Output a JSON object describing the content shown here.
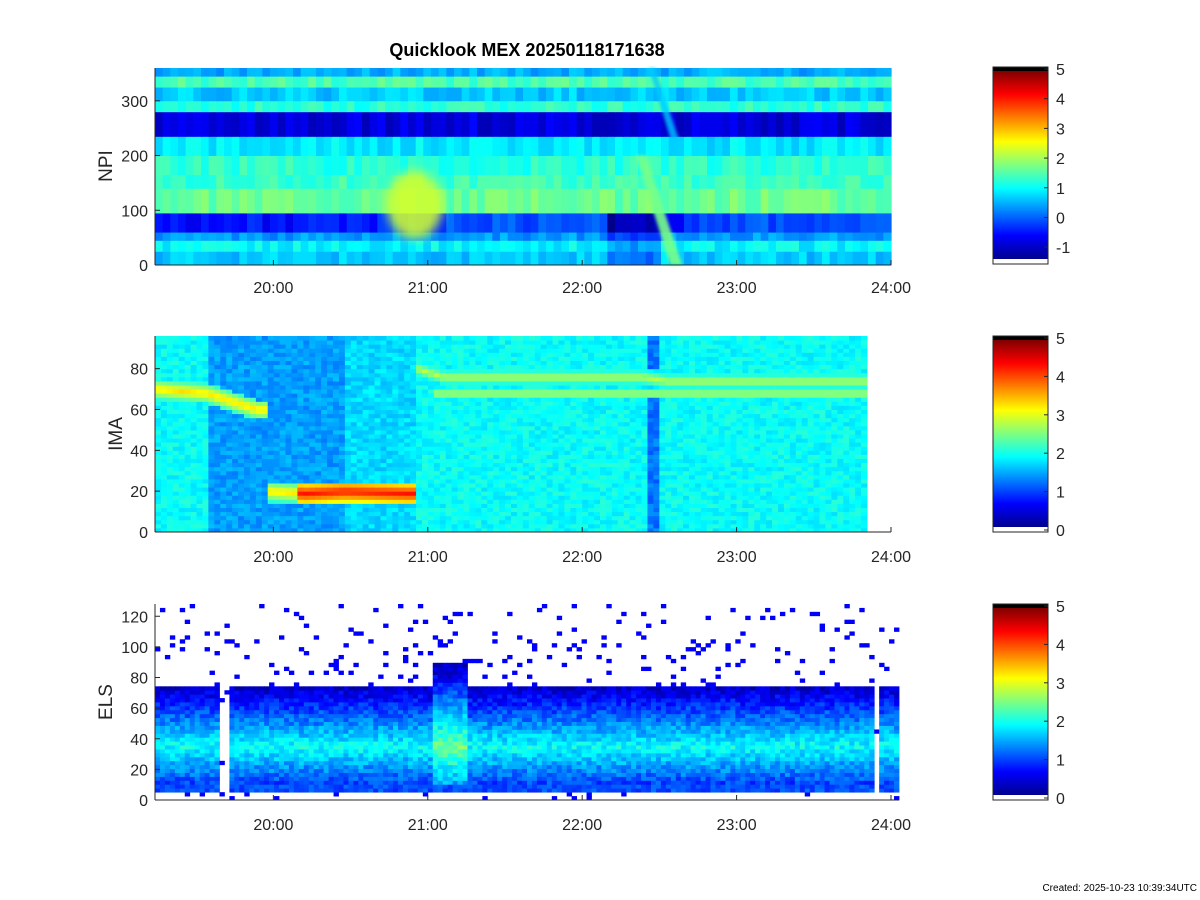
{
  "figure": {
    "title": "Quicklook MEX 20250118171638",
    "footer": "Created: 2025-10-23 10:39:34UTC"
  },
  "colormap": "jet",
  "chart_data": [
    {
      "type": "heatmap",
      "name": "npi-panel",
      "ylabel": "NPI",
      "x_ticks": [
        "20:00",
        "21:00",
        "22:00",
        "23:00",
        "24:00"
      ],
      "y_ticks": [
        "0",
        "100",
        "200",
        "300"
      ],
      "ylim": [
        0,
        360
      ],
      "colorbar": {
        "min": -1.5,
        "max": 5,
        "ticks": [
          "-1",
          "0",
          "1",
          "2",
          "3",
          "4",
          "5"
        ]
      },
      "features": [
        {
          "type": "blob",
          "label": "enhancement near 21:00",
          "time_start": "20:45",
          "time_end": "21:05",
          "y_center": 110,
          "value": 2.3
        },
        {
          "type": "diagonal-band",
          "label": "crossing 22:15-22:35",
          "time_start": "22:15",
          "time_end": "22:35",
          "value": 1.7
        }
      ]
    },
    {
      "type": "heatmap",
      "name": "ima-panel",
      "ylabel": "IMA",
      "x_ticks": [
        "20:00",
        "21:00",
        "22:00",
        "23:00",
        "24:00"
      ],
      "y_ticks": [
        "0",
        "20",
        "40",
        "60",
        "80"
      ],
      "ylim": [
        0,
        96
      ],
      "colorbar": {
        "min": 0,
        "max": 5,
        "ticks": [
          "0",
          "1",
          "2",
          "3",
          "4",
          "5"
        ]
      },
      "trace": [
        {
          "time": "19:15",
          "energy": 70
        },
        {
          "time": "19:35",
          "energy": 68
        },
        {
          "time": "19:45",
          "energy": 64
        },
        {
          "time": "19:55",
          "energy": 60
        },
        {
          "time": "20:00",
          "energy": 20
        },
        {
          "time": "20:15",
          "energy": 19
        },
        {
          "time": "20:30",
          "energy": 20
        },
        {
          "time": "20:55",
          "energy": 19
        },
        {
          "time": "21:00",
          "energy": 80
        },
        {
          "time": "21:10",
          "energy": 76
        },
        {
          "time": "22:30",
          "energy": 76
        },
        {
          "time": "22:40",
          "energy": 74
        },
        {
          "time": "23:50",
          "energy": 74
        }
      ]
    },
    {
      "type": "heatmap",
      "name": "els-panel",
      "ylabel": "ELS",
      "x_ticks": [
        "20:00",
        "21:00",
        "22:00",
        "23:00",
        "24:00"
      ],
      "y_ticks": [
        "0",
        "20",
        "40",
        "60",
        "80",
        "100",
        "120"
      ],
      "ylim": [
        0,
        128
      ],
      "colorbar": {
        "min": 0,
        "max": 5,
        "ticks": [
          "0",
          "1",
          "2",
          "3",
          "4",
          "5"
        ]
      },
      "features": [
        {
          "type": "band",
          "label": "main electron population",
          "energy_low": 10,
          "energy_high": 75,
          "peak_energy": 35
        },
        {
          "type": "burst",
          "label": "enhancement near 21:00",
          "time_start": "21:00",
          "time_end": "21:15",
          "energy_high": 90
        }
      ]
    }
  ]
}
